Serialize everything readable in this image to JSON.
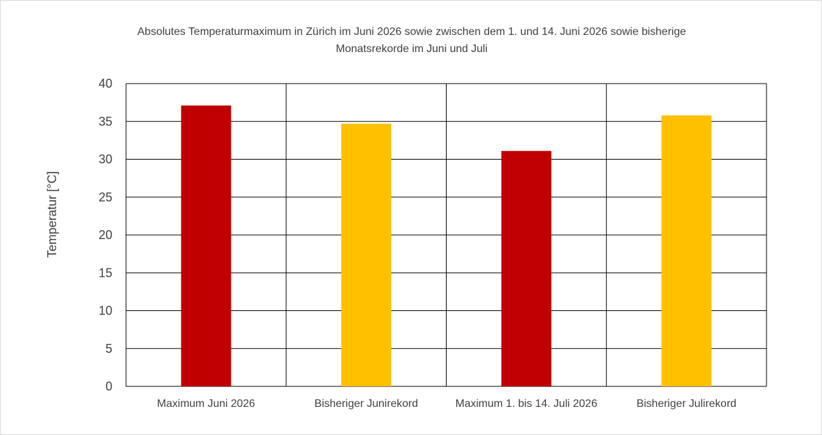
{
  "colors": {
    "current_max": "#c00000",
    "previous_record": "#ffc000",
    "grid": "#000000",
    "text": "#404040"
  },
  "chart_data": {
    "type": "bar",
    "title_line1": "Absolutes Temperaturmaximum in Zürich im Juni 2026 sowie zwischen dem 1. und 14. Juni 2026 sowie bisherige",
    "title_line2": "Monatsrekorde im Juni und Juli",
    "ylabel": "Temperatur [°C]",
    "xlabel": "",
    "ylim": [
      0,
      40
    ],
    "yticks": [
      0,
      5,
      10,
      15,
      20,
      25,
      30,
      35,
      40
    ],
    "grid": true,
    "legend": "none",
    "categories": [
      "Maximum Juni 2026",
      "Bisheriger Junirekord",
      "Maximum 1. bis 14. Juli 2026",
      "Bisheriger Julirekord"
    ],
    "values": [
      37.1,
      34.7,
      31.1,
      35.8
    ],
    "bar_colors": [
      "#c00000",
      "#ffc000",
      "#c00000",
      "#ffc000"
    ]
  }
}
